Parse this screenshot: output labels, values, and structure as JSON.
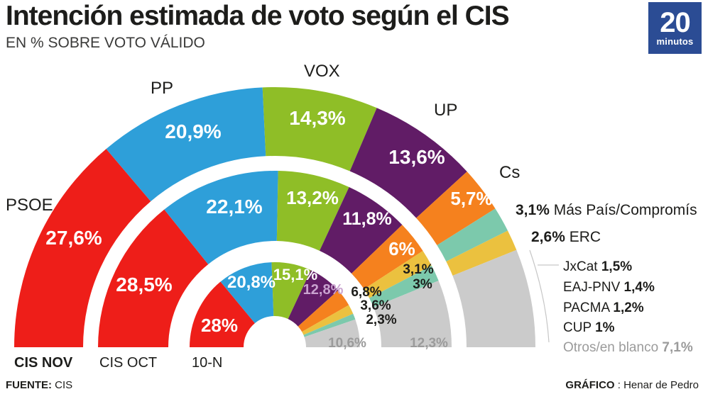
{
  "header": {
    "title": "Intención estimada de voto según el CIS",
    "subtitle": "EN % SOBRE VOTO VÁLIDO"
  },
  "logo": {
    "number": "20",
    "word": "minutos",
    "bg_color": "#2B4C94"
  },
  "footer": {
    "source_label": "FUENTE:",
    "source_value": " CIS",
    "credit_label": "GRÁFICO",
    "credit_value": " : Henar de Pedro"
  },
  "chart_data": {
    "type": "pie",
    "variant": "half-donut, 3 concentric rings, 180° span, flat base",
    "title": "Intención estimada de voto según el CIS",
    "unit": "% sobre voto válido",
    "legend_position": "right",
    "colors": {
      "PSOE": "#EE1E19",
      "PP": "#2E9FD9",
      "VOX": "#8FBE27",
      "UP": "#611C66",
      "Cs": "#F5811E",
      "Más País/Compromís": "#7CC9AC",
      "ERC": "#EBC13F",
      "Otros": "#CBCBCB"
    },
    "label_colors": {
      "inside_big": "#ffffff",
      "inside_up_inner": "#C9A2CF",
      "small_black": "#1d1d1b",
      "muted_gray": "#9b9b9b"
    },
    "arc_party_names": [
      "PSOE",
      "PP",
      "VOX",
      "UP",
      "Cs"
    ],
    "rings": [
      {
        "name": "CIS NOV",
        "bold": true,
        "segments": [
          {
            "party": "PSOE",
            "value": 27.6,
            "label": "27,6%"
          },
          {
            "party": "PP",
            "value": 20.9,
            "label": "20,9%"
          },
          {
            "party": "VOX",
            "value": 14.3,
            "label": "14,3%"
          },
          {
            "party": "UP",
            "value": 13.6,
            "label": "13,6%"
          },
          {
            "party": "Cs",
            "value": 5.7,
            "label": "5,7%"
          },
          {
            "party": "Más País/Compromís",
            "value": 3.1,
            "label": ""
          },
          {
            "party": "ERC",
            "value": 2.6,
            "label": ""
          },
          {
            "party": "Otros",
            "value": 12.2,
            "label": ""
          }
        ]
      },
      {
        "name": "CIS OCT",
        "bold": false,
        "segments": [
          {
            "party": "PSOE",
            "value": 28.5,
            "label": "28,5%"
          },
          {
            "party": "PP",
            "value": 22.1,
            "label": "22,1%"
          },
          {
            "party": "VOX",
            "value": 13.2,
            "label": "13,2%"
          },
          {
            "party": "UP",
            "value": 11.8,
            "label": "11,8%"
          },
          {
            "party": "Cs",
            "value": 6,
            "label": "6%"
          },
          {
            "party": "ERC",
            "value": 3.1,
            "label": "3,1%"
          },
          {
            "party": "Más País/Compromís",
            "value": 3,
            "label": "3%"
          },
          {
            "party": "Otros",
            "value": 12.3,
            "label": "12,3%"
          }
        ]
      },
      {
        "name": "10-N",
        "bold": false,
        "segments": [
          {
            "party": "PSOE",
            "value": 28,
            "label": "28%"
          },
          {
            "party": "PP",
            "value": 20.8,
            "label": "20,8%"
          },
          {
            "party": "VOX",
            "value": 15.1,
            "label": "15,1%"
          },
          {
            "party": "UP",
            "value": 12.8,
            "label": "12,8%"
          },
          {
            "party": "Cs",
            "value": 6.8,
            "label": "6,8%"
          },
          {
            "party": "ERC",
            "value": 3.6,
            "label": "3,6%"
          },
          {
            "party": "Más País/Compromís",
            "value": 2.3,
            "label": "2,3%"
          },
          {
            "party": "Otros",
            "value": 10.6,
            "label": "10,6%"
          }
        ]
      }
    ],
    "legend_right": [
      {
        "value_label": "3,1%",
        "name": "Más País/Compromís"
      },
      {
        "value_label": "2,6%",
        "name": "ERC"
      }
    ],
    "minor_parties": [
      {
        "name": "JxCat",
        "value_label": "1,5%",
        "muted": false
      },
      {
        "name": "EAJ-PNV",
        "value_label": "1,4%",
        "muted": false
      },
      {
        "name": "PACMA",
        "value_label": "1,2%",
        "muted": false
      },
      {
        "name": "CUP",
        "value_label": "1%",
        "muted": false
      },
      {
        "name": "Otros/en blanco",
        "value_label": "7,1%",
        "muted": true
      }
    ]
  }
}
